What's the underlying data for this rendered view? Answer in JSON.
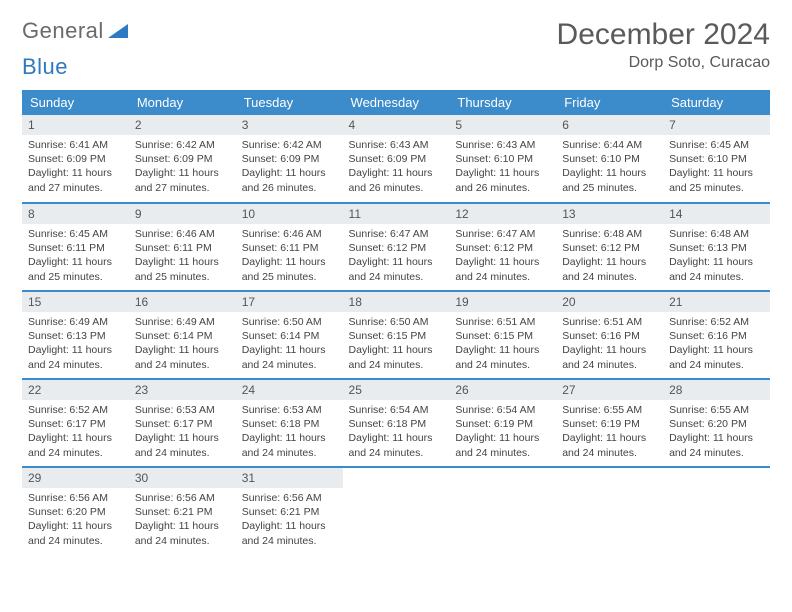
{
  "logo": {
    "text1": "General",
    "text2": "Blue"
  },
  "title": "December 2024",
  "location": "Dorp Soto, Curacao",
  "colors": {
    "header_bg": "#3c8bca",
    "header_text": "#ffffff",
    "daynum_bg": "#e9ecef",
    "border": "#3c8bca",
    "title_color": "#5a5a5a",
    "logo_gray": "#6a6a6a",
    "logo_blue": "#2e79c2"
  },
  "weekdays": [
    "Sunday",
    "Monday",
    "Tuesday",
    "Wednesday",
    "Thursday",
    "Friday",
    "Saturday"
  ],
  "weeks": [
    [
      {
        "n": "1",
        "sr": "6:41 AM",
        "ss": "6:09 PM",
        "dl": "11 hours and 27 minutes."
      },
      {
        "n": "2",
        "sr": "6:42 AM",
        "ss": "6:09 PM",
        "dl": "11 hours and 27 minutes."
      },
      {
        "n": "3",
        "sr": "6:42 AM",
        "ss": "6:09 PM",
        "dl": "11 hours and 26 minutes."
      },
      {
        "n": "4",
        "sr": "6:43 AM",
        "ss": "6:09 PM",
        "dl": "11 hours and 26 minutes."
      },
      {
        "n": "5",
        "sr": "6:43 AM",
        "ss": "6:10 PM",
        "dl": "11 hours and 26 minutes."
      },
      {
        "n": "6",
        "sr": "6:44 AM",
        "ss": "6:10 PM",
        "dl": "11 hours and 25 minutes."
      },
      {
        "n": "7",
        "sr": "6:45 AM",
        "ss": "6:10 PM",
        "dl": "11 hours and 25 minutes."
      }
    ],
    [
      {
        "n": "8",
        "sr": "6:45 AM",
        "ss": "6:11 PM",
        "dl": "11 hours and 25 minutes."
      },
      {
        "n": "9",
        "sr": "6:46 AM",
        "ss": "6:11 PM",
        "dl": "11 hours and 25 minutes."
      },
      {
        "n": "10",
        "sr": "6:46 AM",
        "ss": "6:11 PM",
        "dl": "11 hours and 25 minutes."
      },
      {
        "n": "11",
        "sr": "6:47 AM",
        "ss": "6:12 PM",
        "dl": "11 hours and 24 minutes."
      },
      {
        "n": "12",
        "sr": "6:47 AM",
        "ss": "6:12 PM",
        "dl": "11 hours and 24 minutes."
      },
      {
        "n": "13",
        "sr": "6:48 AM",
        "ss": "6:12 PM",
        "dl": "11 hours and 24 minutes."
      },
      {
        "n": "14",
        "sr": "6:48 AM",
        "ss": "6:13 PM",
        "dl": "11 hours and 24 minutes."
      }
    ],
    [
      {
        "n": "15",
        "sr": "6:49 AM",
        "ss": "6:13 PM",
        "dl": "11 hours and 24 minutes."
      },
      {
        "n": "16",
        "sr": "6:49 AM",
        "ss": "6:14 PM",
        "dl": "11 hours and 24 minutes."
      },
      {
        "n": "17",
        "sr": "6:50 AM",
        "ss": "6:14 PM",
        "dl": "11 hours and 24 minutes."
      },
      {
        "n": "18",
        "sr": "6:50 AM",
        "ss": "6:15 PM",
        "dl": "11 hours and 24 minutes."
      },
      {
        "n": "19",
        "sr": "6:51 AM",
        "ss": "6:15 PM",
        "dl": "11 hours and 24 minutes."
      },
      {
        "n": "20",
        "sr": "6:51 AM",
        "ss": "6:16 PM",
        "dl": "11 hours and 24 minutes."
      },
      {
        "n": "21",
        "sr": "6:52 AM",
        "ss": "6:16 PM",
        "dl": "11 hours and 24 minutes."
      }
    ],
    [
      {
        "n": "22",
        "sr": "6:52 AM",
        "ss": "6:17 PM",
        "dl": "11 hours and 24 minutes."
      },
      {
        "n": "23",
        "sr": "6:53 AM",
        "ss": "6:17 PM",
        "dl": "11 hours and 24 minutes."
      },
      {
        "n": "24",
        "sr": "6:53 AM",
        "ss": "6:18 PM",
        "dl": "11 hours and 24 minutes."
      },
      {
        "n": "25",
        "sr": "6:54 AM",
        "ss": "6:18 PM",
        "dl": "11 hours and 24 minutes."
      },
      {
        "n": "26",
        "sr": "6:54 AM",
        "ss": "6:19 PM",
        "dl": "11 hours and 24 minutes."
      },
      {
        "n": "27",
        "sr": "6:55 AM",
        "ss": "6:19 PM",
        "dl": "11 hours and 24 minutes."
      },
      {
        "n": "28",
        "sr": "6:55 AM",
        "ss": "6:20 PM",
        "dl": "11 hours and 24 minutes."
      }
    ],
    [
      {
        "n": "29",
        "sr": "6:56 AM",
        "ss": "6:20 PM",
        "dl": "11 hours and 24 minutes."
      },
      {
        "n": "30",
        "sr": "6:56 AM",
        "ss": "6:21 PM",
        "dl": "11 hours and 24 minutes."
      },
      {
        "n": "31",
        "sr": "6:56 AM",
        "ss": "6:21 PM",
        "dl": "11 hours and 24 minutes."
      },
      null,
      null,
      null,
      null
    ]
  ],
  "labels": {
    "sunrise": "Sunrise:",
    "sunset": "Sunset:",
    "daylight": "Daylight:"
  }
}
